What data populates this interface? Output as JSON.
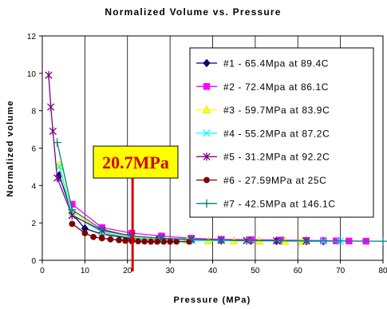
{
  "chart_data": {
    "type": "line",
    "title": "Normalized Volume vs. Pressure",
    "xlabel": "Pressure (MPa)",
    "ylabel": "Normalized volume",
    "xlim": [
      0,
      80
    ],
    "ylim": [
      0,
      12
    ],
    "x_ticks": [
      "0",
      "10",
      "20",
      "30",
      "40",
      "50",
      "60",
      "70",
      "80"
    ],
    "y_ticks": [
      "0",
      "2",
      "4",
      "6",
      "8",
      "10",
      "12"
    ],
    "grid": "vertical",
    "legend_position": "top-right",
    "annotation": {
      "text": "20.7MPa",
      "x": 21.2
    },
    "series": [
      {
        "name": "#1 - 65.4Mpa at 89.4C",
        "color": "#000080",
        "marker": "diamond",
        "x": [
          4,
          7,
          10,
          14,
          20,
          27,
          35,
          42,
          49,
          55,
          62,
          66
        ],
        "y": [
          4.55,
          2.5,
          1.7,
          1.4,
          1.2,
          1.12,
          1.08,
          1.05,
          1.04,
          1.03,
          1.02,
          1.02
        ]
      },
      {
        "name": "#2 - 72.4Mpa at 86.1C",
        "color": "#ff00ff",
        "marker": "square",
        "x": [
          7,
          14,
          21,
          28,
          35,
          42,
          49,
          56,
          62,
          66,
          69,
          72,
          76
        ],
        "y": [
          3.0,
          1.75,
          1.45,
          1.3,
          1.18,
          1.12,
          1.1,
          1.08,
          1.06,
          1.05,
          1.04,
          1.03,
          1.02
        ]
      },
      {
        "name": "#3 - 59.7MPa at 83.9C",
        "color": "#ffff00",
        "marker": "triangle",
        "x": [
          4,
          7,
          14,
          21,
          28,
          34,
          39,
          45,
          51,
          57,
          61
        ],
        "y": [
          5.1,
          2.6,
          1.55,
          1.25,
          1.12,
          1.08,
          1.05,
          1.04,
          1.03,
          1.02,
          1.01
        ]
      },
      {
        "name": "#4 - 55.2MPa at 87.2C",
        "color": "#00ffff",
        "marker": "x",
        "x": [
          4,
          7,
          14,
          21,
          28,
          35,
          42,
          48,
          55,
          62,
          66,
          70
        ],
        "y": [
          5.0,
          2.45,
          1.5,
          1.2,
          1.1,
          1.06,
          1.05,
          1.04,
          1.03,
          1.02,
          1.02,
          1.01
        ]
      },
      {
        "name": "#5 - 31.2MPa at 92.2C",
        "color": "#800080",
        "marker": "star",
        "x": [
          1.5,
          2,
          2.5,
          3.5,
          7,
          14,
          21,
          28,
          35,
          42,
          48,
          55,
          62
        ],
        "y": [
          9.9,
          8.2,
          6.9,
          4.4,
          2.4,
          1.6,
          1.3,
          1.18,
          1.12,
          1.08,
          1.06,
          1.05,
          1.04
        ]
      },
      {
        "name": "#6 - 27.59MPa at 25C",
        "color": "#800000",
        "marker": "circle",
        "x": [
          7,
          10,
          12,
          14,
          16,
          18,
          19.5,
          21,
          22.5,
          24,
          25.5,
          27,
          28.5,
          30,
          31.5,
          34.5
        ],
        "y": [
          1.95,
          1.45,
          1.25,
          1.18,
          1.12,
          1.08,
          1.05,
          1.03,
          1.02,
          1.01,
          1.0,
          1.0,
          1.0,
          1.0,
          1.0,
          1.0
        ]
      },
      {
        "name": "#7 - 42.5MPa at 146.1C",
        "color": "#008080",
        "marker": "plus",
        "x": [
          3.5,
          7,
          14,
          21,
          28,
          35,
          42,
          49,
          56,
          62,
          70,
          80
        ],
        "y": [
          6.3,
          2.7,
          1.65,
          1.3,
          1.18,
          1.12,
          1.08,
          1.06,
          1.05,
          1.04,
          1.03,
          1.02
        ]
      }
    ]
  }
}
